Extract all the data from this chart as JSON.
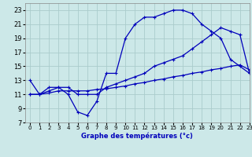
{
  "title": "Graphe des températures (°c)",
  "bg_color": "#cce8e8",
  "grid_color": "#aacccc",
  "line_color": "#0000bb",
  "xlim": [
    -0.5,
    23
  ],
  "ylim": [
    7,
    24
  ],
  "xticks": [
    0,
    1,
    2,
    3,
    4,
    5,
    6,
    7,
    8,
    9,
    10,
    11,
    12,
    13,
    14,
    15,
    16,
    17,
    18,
    19,
    20,
    21,
    22,
    23
  ],
  "yticks": [
    7,
    9,
    11,
    13,
    15,
    17,
    19,
    21,
    23
  ],
  "series1_x": [
    0,
    1,
    2,
    3,
    4,
    5,
    6,
    7,
    8,
    9,
    10,
    11,
    12,
    13,
    14,
    15,
    16,
    17,
    18,
    19,
    20,
    21,
    22,
    23
  ],
  "series1_y": [
    13,
    11,
    12,
    12,
    11,
    8.5,
    8,
    10,
    14,
    14,
    19,
    21,
    22,
    22,
    22.5,
    23,
    23,
    22.5,
    21,
    20,
    19,
    16,
    15,
    14
  ],
  "series2_x": [
    0,
    1,
    2,
    3,
    4,
    5,
    6,
    7,
    8,
    9,
    10,
    11,
    12,
    13,
    14,
    15,
    16,
    17,
    18,
    19,
    20,
    21,
    22,
    23
  ],
  "series2_y": [
    11,
    11,
    11.5,
    12,
    12,
    11,
    11,
    11,
    12,
    12.5,
    13,
    13.5,
    14,
    15,
    15.5,
    16,
    16.5,
    17.5,
    18.5,
    19.5,
    20.5,
    20,
    19.5,
    14
  ],
  "series3_x": [
    0,
    1,
    2,
    3,
    4,
    5,
    6,
    7,
    8,
    9,
    10,
    11,
    12,
    13,
    14,
    15,
    16,
    17,
    18,
    19,
    20,
    21,
    22,
    23
  ],
  "series3_y": [
    11,
    11,
    11.2,
    11.5,
    11.5,
    11.5,
    11.5,
    11.7,
    11.8,
    12,
    12.2,
    12.5,
    12.7,
    13,
    13.2,
    13.5,
    13.7,
    14,
    14.2,
    14.5,
    14.7,
    15,
    15.2,
    14.5
  ]
}
